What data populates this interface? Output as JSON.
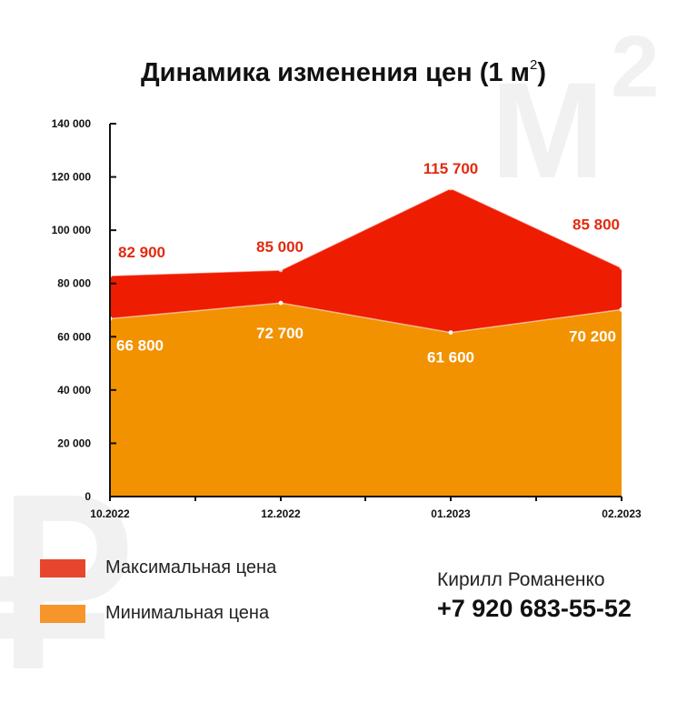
{
  "watermark": {
    "letter": "М",
    "superscript": "2",
    "currency": "₽"
  },
  "chart_data": {
    "type": "area",
    "title": "Динамика изменения цен (1 м",
    "title_superscript": "2",
    "title_suffix": ")",
    "categories": [
      "10.2022",
      "12.2022",
      "01.2023",
      "02.2023"
    ],
    "ylim": [
      0,
      140000
    ],
    "y_ticks": [
      0,
      20000,
      40000,
      60000,
      80000,
      100000,
      120000,
      140000
    ],
    "y_tick_labels": [
      "0",
      "20 000",
      "40 000",
      "60 000",
      "80 000",
      "100 000",
      "120 000",
      "140 000"
    ],
    "grid": false,
    "legend_position": "bottom-left",
    "series": [
      {
        "name": "Максимальная цена",
        "color": "#ee1c00",
        "legend_color": "#e8452e",
        "label_color": "#e22a10",
        "values": [
          82900,
          85000,
          115700,
          85800
        ],
        "labels": [
          "82 900",
          "85 000",
          "115 700",
          "85 800"
        ]
      },
      {
        "name": "Минимальная цена",
        "color": "#f29200",
        "legend_color": "#f5952a",
        "label_color": "#ffffff",
        "values": [
          66800,
          72700,
          61600,
          70200
        ],
        "labels": [
          "66 800",
          "72 700",
          "61 600",
          "70 200"
        ]
      }
    ]
  },
  "contact": {
    "name": "Кирилл Романенко",
    "phone": "+7 920 683-55-52"
  }
}
